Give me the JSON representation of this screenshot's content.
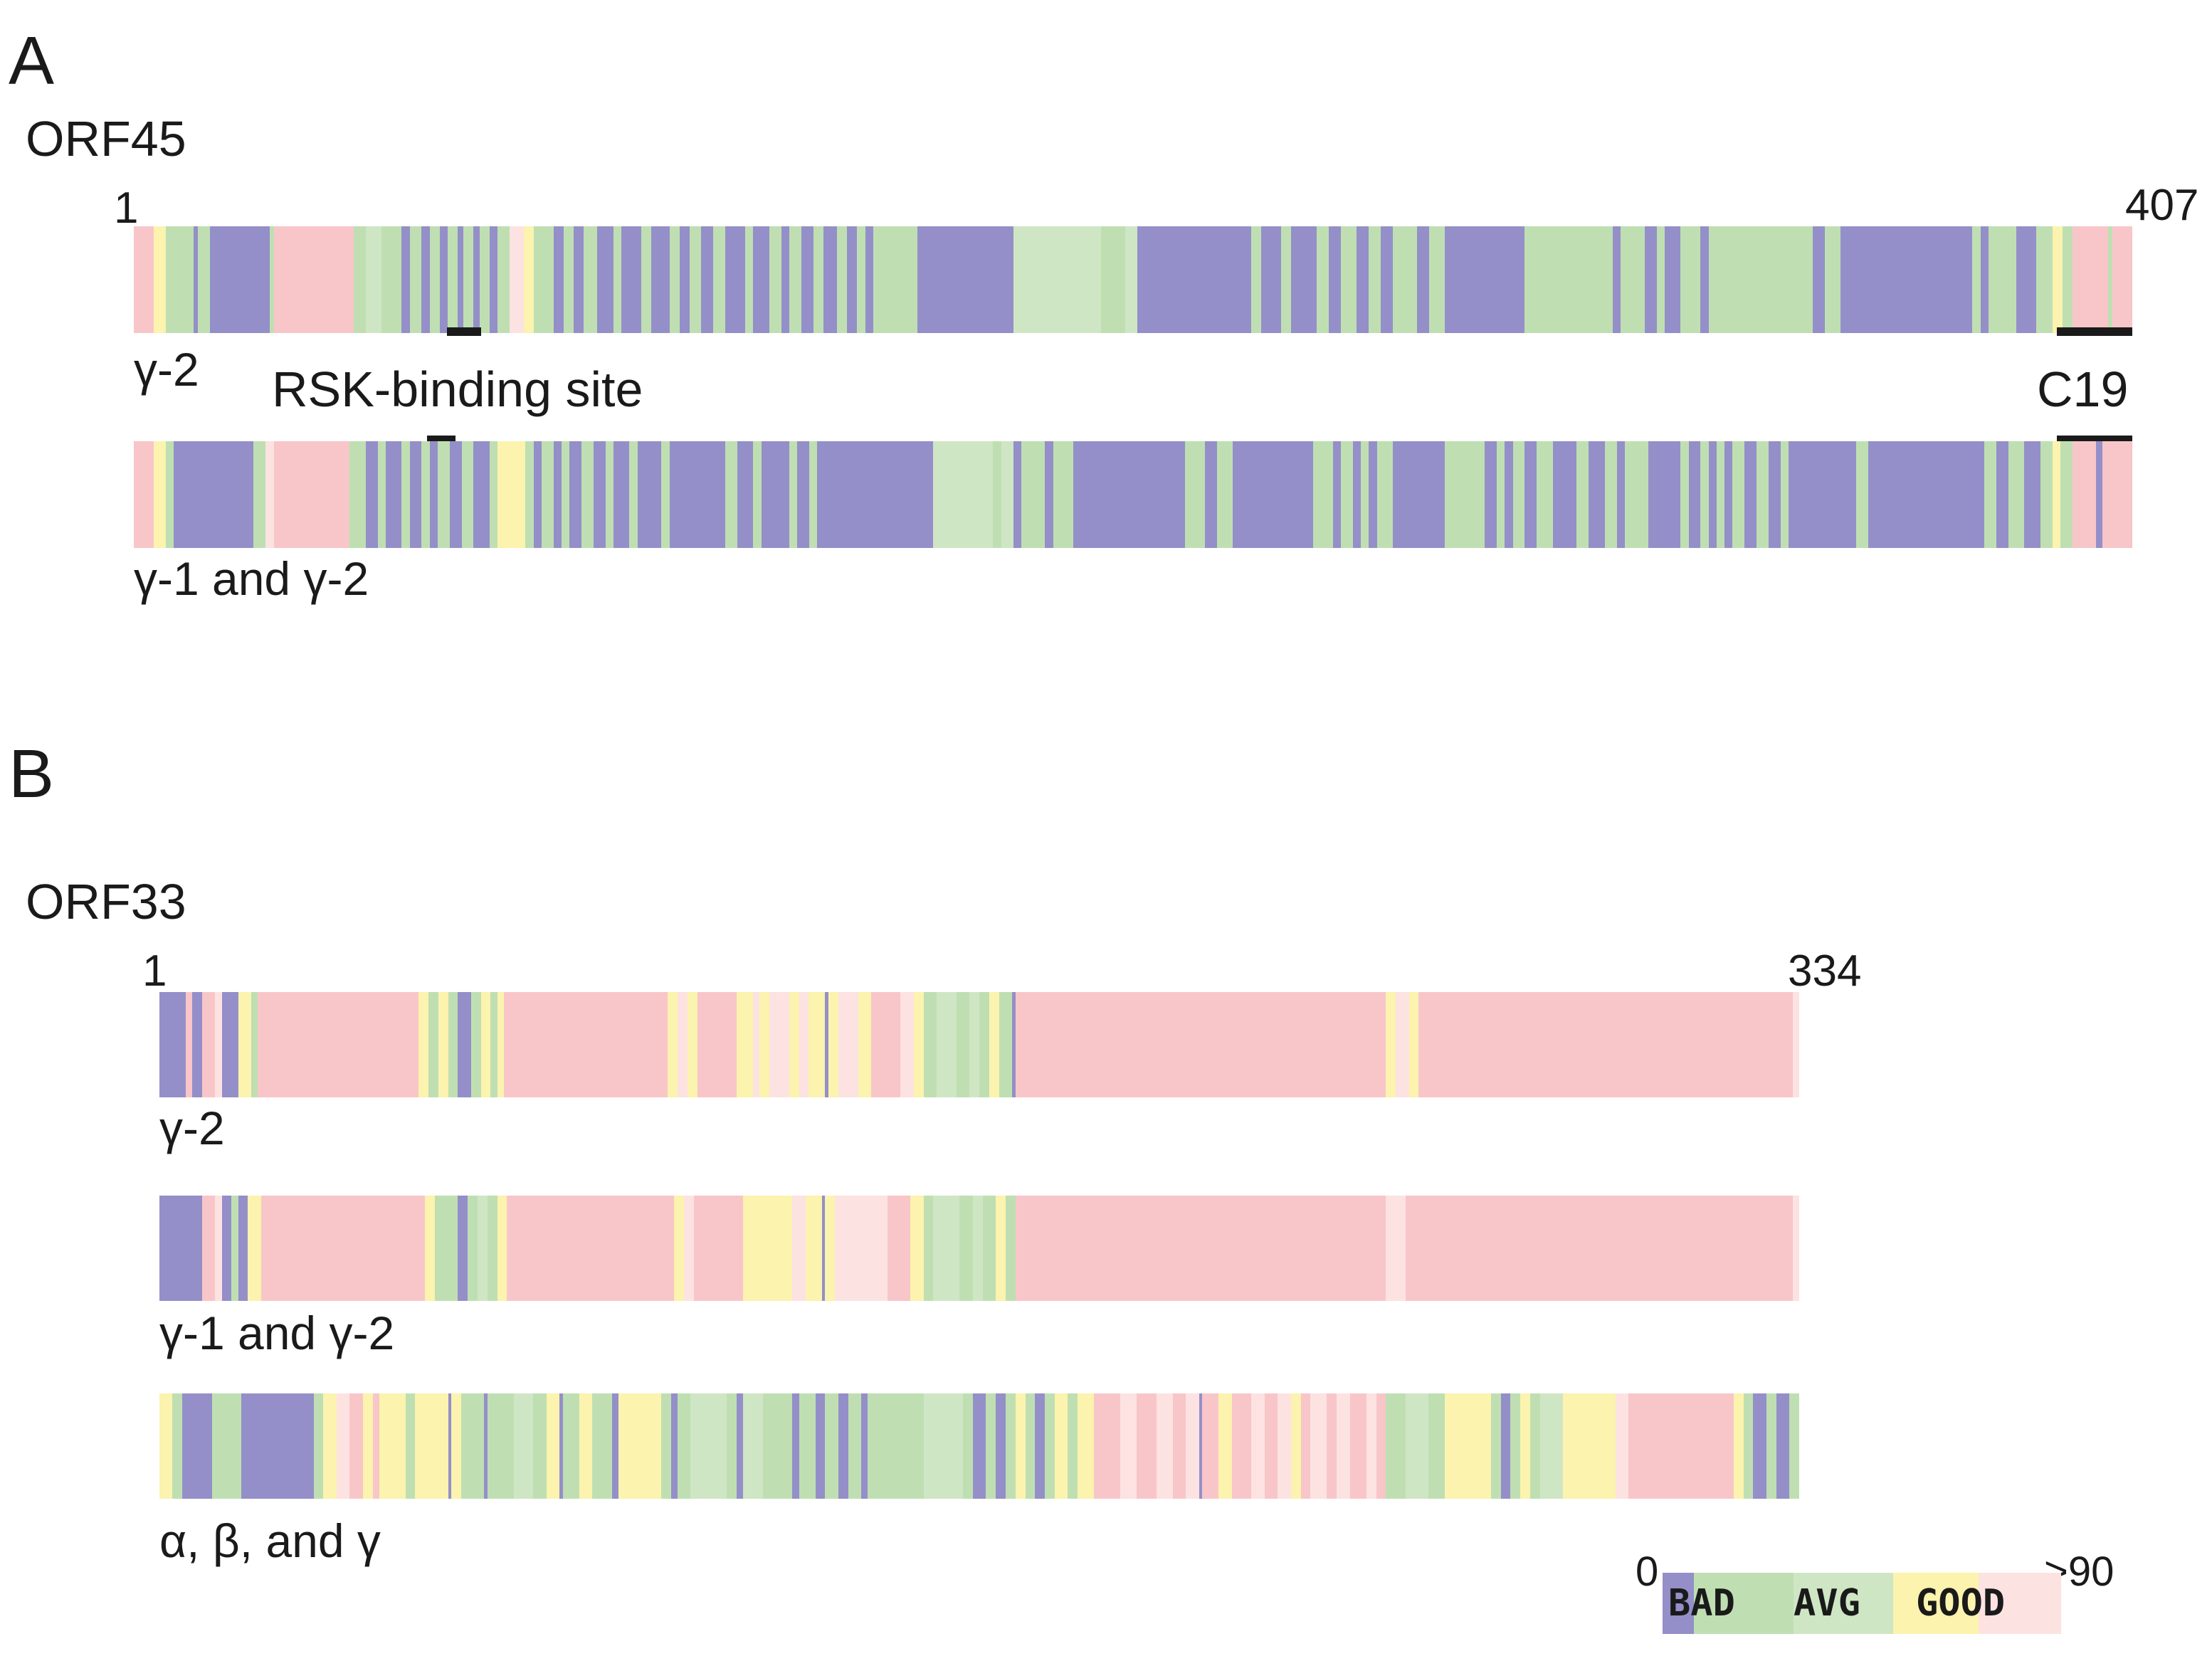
{
  "colors": {
    "bad": "#948fc8",
    "avg_low": "#bfdfb2",
    "avg_low_light": "#cfe6c4",
    "avg": "#fbf3ae",
    "good_low": "#fde2e2",
    "good": "#f8c6c8"
  },
  "panelA": {
    "letter": "A",
    "orf": "ORF45",
    "start": "1",
    "end": "407",
    "track1": "γ-2",
    "track2": "γ-1 and γ-2",
    "site1": "RSK-binding site",
    "site2": "C19"
  },
  "panelB": {
    "letter": "B",
    "orf": "ORF33",
    "start": "1",
    "end": "334",
    "track1": "γ-2",
    "track2": "γ-1 and γ-2",
    "track3": "α, β, and γ"
  },
  "legend": {
    "min": "0",
    "max": ">90",
    "bad": "BAD",
    "avg": "AVG",
    "good": "GOOD"
  }
}
